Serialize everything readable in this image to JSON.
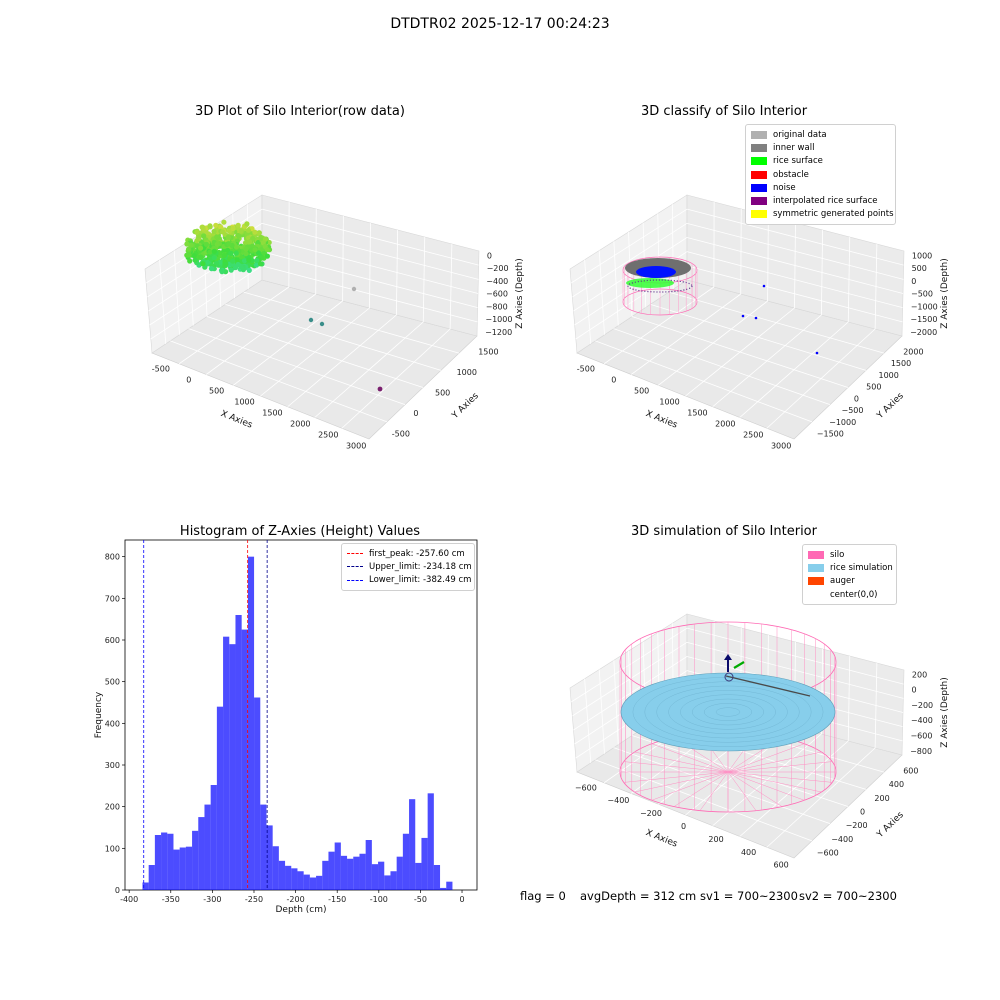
{
  "figure_title": "DTDTR02 2025-12-17 00:24:23",
  "panel1": {
    "title": "3D Plot of Silo Interior(row data)",
    "xlabel": "X Axies",
    "ylabel": "Y Axies",
    "zlabel": "Z Axies (Depth)",
    "xticks": [
      "-500",
      "0",
      "500",
      "1000",
      "1500",
      "2000",
      "2500",
      "3000"
    ],
    "yticks": [
      "-500",
      "0",
      "500",
      "1000",
      "1500"
    ],
    "zticks": [
      "0",
      "−200",
      "−400",
      "−600",
      "−800",
      "−1000",
      "−1200"
    ]
  },
  "panel2": {
    "title": "3D classify of Silo Interior",
    "xlabel": "X Axies",
    "ylabel": "Y Axies",
    "zlabel": "Z Axies (Depth)",
    "xticks": [
      "-500",
      "0",
      "500",
      "1000",
      "1500",
      "2000",
      "2500",
      "3000"
    ],
    "yticks": [
      "−1500",
      "−1000",
      "−500",
      "0",
      "500",
      "1000",
      "1500",
      "2000"
    ],
    "zticks": [
      "1000",
      "500",
      "0",
      "−500",
      "−1000",
      "−1500",
      "−2000"
    ],
    "legend": [
      {
        "label": "original data",
        "color": "#b0b0b0"
      },
      {
        "label": "inner wall",
        "color": "#808080"
      },
      {
        "label": "rice surface",
        "color": "#00ff00"
      },
      {
        "label": "obstacle",
        "color": "#ff0000"
      },
      {
        "label": "noise",
        "color": "#0000ff"
      },
      {
        "label": "interpolated rice surface",
        "color": "#800080"
      },
      {
        "label": "symmetric generated points",
        "color": "#ffff00"
      }
    ]
  },
  "panel4": {
    "title": "3D simulation of Silo Interior",
    "xlabel": "X Axies",
    "ylabel": "Y Axies",
    "zlabel": "Z Axies (Depth)",
    "xticks": [
      "−600",
      "−400",
      "−200",
      "0",
      "200",
      "400",
      "600"
    ],
    "yticks": [
      "−600",
      "−400",
      "−200",
      "0",
      "200",
      "400",
      "600"
    ],
    "zticks": [
      "200",
      "0",
      "−200",
      "−400",
      "−600",
      "−800"
    ],
    "legend": [
      {
        "label": "silo",
        "color": "#ff69b4"
      },
      {
        "label": "rice simulation",
        "color": "#87ceeb"
      },
      {
        "label": "auger",
        "color": "#ff4500"
      },
      {
        "label": "center(0,0)",
        "color": "#ffffff"
      }
    ],
    "status": {
      "flag": "flag = 0",
      "avg": "avgDepth = 312 cm",
      "sv1": "sv1 = 700~2300",
      "sv2": "sv2 = 700~2300"
    }
  },
  "chart_data": [
    {
      "type": "histogram",
      "title": "Histogram of Z-Axies (Height) Values",
      "xlabel": "Depth (cm)",
      "ylabel": "Frequency",
      "xlim": [
        -405,
        18
      ],
      "ylim": [
        0,
        840
      ],
      "xticks": [
        -400,
        -350,
        -300,
        -250,
        -200,
        -150,
        -100,
        -50,
        0
      ],
      "yticks": [
        0,
        100,
        200,
        300,
        400,
        500,
        600,
        700,
        800
      ],
      "bar_color": "#0000ff",
      "bin_start": -384,
      "bin_width": 7.45,
      "values": [
        18,
        60,
        132,
        138,
        135,
        97,
        102,
        104,
        142,
        175,
        205,
        252,
        440,
        608,
        590,
        660,
        625,
        800,
        462,
        205,
        155,
        105,
        70,
        58,
        52,
        45,
        37,
        30,
        34,
        70,
        92,
        114,
        82,
        75,
        80,
        87,
        120,
        62,
        68,
        35,
        45,
        80,
        135,
        218,
        65,
        125,
        232,
        60,
        5,
        20
      ],
      "vlines": [
        {
          "label": "first_peak: -257.60 cm",
          "x": -257.6,
          "color": "#ff0000"
        },
        {
          "label": "Upper_limit: -234.18 cm",
          "x": -234.18,
          "color": "#00008b"
        },
        {
          "label": "Lower_limit: -382.49 cm",
          "x": -382.49,
          "color": "#0000ff"
        }
      ]
    }
  ]
}
